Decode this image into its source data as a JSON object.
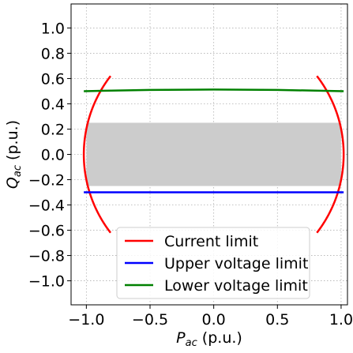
{
  "chart_data": {
    "type": "line",
    "title": "",
    "xlabel": "P",
    "xlabel_sub": "ac",
    "xlabel_unit": " (p.u.)",
    "ylabel": "Q",
    "ylabel_sub": "ac",
    "ylabel_unit": " (p.u.)",
    "xlim": [
      -1.12,
      1.05
    ],
    "ylim": [
      -1.19,
      1.19
    ],
    "xticks": [
      -1.0,
      -0.5,
      0.0,
      0.5,
      1.0
    ],
    "xtick_labels": [
      "−1.0",
      "−0.5",
      "0.0",
      "0.5",
      "1.0"
    ],
    "yticks": [
      -1.0,
      -0.8,
      -0.6,
      -0.4,
      -0.2,
      0.0,
      0.2,
      0.4,
      0.6,
      0.8,
      1.0
    ],
    "ytick_labels": [
      "−1.0",
      "−0.8",
      "−0.6",
      "−0.4",
      "−0.2",
      "0.0",
      "0.2",
      "0.4",
      "0.6",
      "0.8",
      "1.0"
    ],
    "grid": true,
    "legend_position": "lower-center",
    "feasible_region": {
      "x": [
        -1.0,
        1.0
      ],
      "y": [
        -0.25,
        0.25
      ],
      "color": "#cccccc"
    },
    "series": [
      {
        "name": "Current limit",
        "color": "#ff0000",
        "shape": "circle-arcs",
        "radius": 1.02,
        "q_max": 0.62,
        "x_split": 0
      },
      {
        "name": "Upper voltage limit",
        "color": "#0000ff",
        "x": [
          -1.02,
          -0.5,
          0.0,
          0.5,
          1.02
        ],
        "y": [
          -0.3,
          -0.3,
          -0.3,
          -0.3,
          -0.3
        ]
      },
      {
        "name": "Lower voltage limit",
        "color": "#008000",
        "x": [
          -1.02,
          -0.5,
          0.0,
          0.5,
          1.02
        ],
        "y": [
          0.5,
          0.51,
          0.513,
          0.51,
          0.5
        ]
      }
    ]
  }
}
